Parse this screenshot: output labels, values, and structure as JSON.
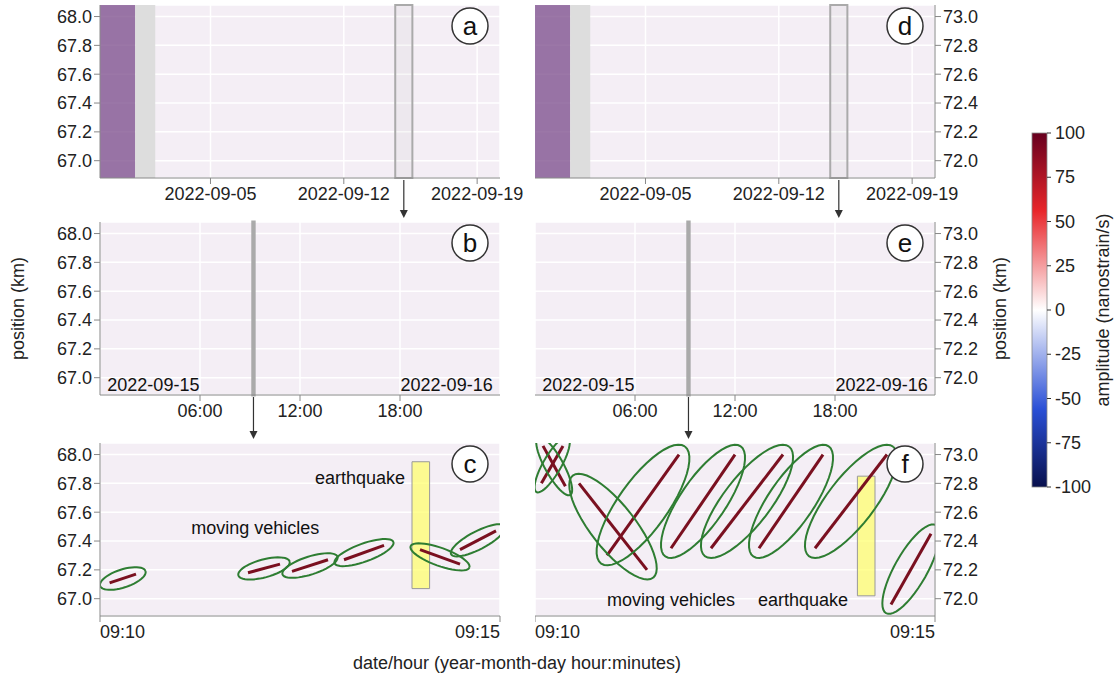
{
  "x_label": "date/hour (year-month-day hour:minutes)",
  "y_label": "position (km)",
  "colorbar": {
    "label": "amplitude (nanostrain/s)",
    "range": [
      -100,
      100
    ],
    "ticks": [
      -100,
      -75,
      -50,
      -25,
      0,
      25,
      50,
      75,
      100
    ]
  },
  "chart_data": [
    {
      "panel": "a",
      "type": "heatmap",
      "grid": true,
      "xlim": [
        -0.8,
        20.2
      ],
      "xticks": [
        {
          "value": 5,
          "label": "2022-09-05"
        },
        {
          "value": 12,
          "label": "2022-09-12"
        },
        {
          "value": 19,
          "label": "2022-09-19"
        }
      ],
      "ylim": [
        66.88,
        68.08
      ],
      "yticks": [
        {
          "value": 67,
          "label": "67.0"
        },
        67.2,
        67.4,
        67.6,
        67.8,
        {
          "value": 68,
          "label": "68.0"
        }
      ],
      "noisy": [
        -0.8,
        1.05
      ],
      "no_data": [
        1.05,
        2.1
      ],
      "highlight": [
        14.7,
        15.6
      ]
    },
    {
      "panel": "b",
      "type": "heatmap",
      "grid": true,
      "xlim": [
        0,
        24
      ],
      "xticks": [
        {
          "value": 6,
          "label": "06:00"
        },
        {
          "value": 12,
          "label": "12:00"
        },
        {
          "value": 18,
          "label": "18:00"
        }
      ],
      "ylim": [
        66.88,
        68.08
      ],
      "yticks": [
        {
          "value": 67,
          "label": "67.0"
        },
        67.2,
        67.4,
        67.6,
        67.8,
        {
          "value": 68,
          "label": "68.0"
        }
      ],
      "highlight": [
        9.1667,
        9.25
      ],
      "annotations": [
        {
          "text": "2022-09-15",
          "x": 0.2,
          "y": 66.95
        },
        {
          "text": "2022-09-16",
          "x": 23.8,
          "y": 66.95
        }
      ]
    },
    {
      "panel": "c",
      "type": "heatmap",
      "grid": true,
      "xlim": [
        10,
        15
      ],
      "xticks": [
        {
          "value": 10,
          "label": "09:10"
        },
        {
          "value": 15,
          "label": "09:15"
        }
      ],
      "ylim": [
        66.88,
        68.08
      ],
      "yticks": [
        {
          "value": 67,
          "label": "67.0"
        },
        67.2,
        67.4,
        67.6,
        67.8,
        {
          "value": 68,
          "label": "68.0"
        }
      ],
      "vehicles": [
        [
          [
            10.12,
            67.11
          ],
          [
            10.45,
            67.17
          ]
        ],
        [
          [
            11.85,
            67.18
          ],
          [
            12.25,
            67.24
          ]
        ],
        [
          [
            12.4,
            67.19
          ],
          [
            12.85,
            67.27
          ]
        ],
        [
          [
            13.05,
            67.27
          ],
          [
            13.55,
            67.37
          ]
        ],
        [
          [
            14.0,
            67.34
          ],
          [
            14.5,
            67.24
          ]
        ],
        [
          [
            14.5,
            67.34
          ],
          [
            14.95,
            67.47
          ]
        ]
      ],
      "earthquake": {
        "x": [
          13.9,
          14.12
        ],
        "y": [
          67.07,
          67.95
        ]
      },
      "annotations": [
        {
          "text": "moving vehicles",
          "x": 11.94,
          "y": 67.49
        },
        {
          "text": "earthquake",
          "x": 13.25,
          "y": 67.84
        }
      ]
    },
    {
      "panel": "d",
      "type": "heatmap",
      "grid": true,
      "xlim": [
        -0.8,
        20.2
      ],
      "xticks": [
        {
          "value": 5,
          "label": "2022-09-05"
        },
        {
          "value": 12,
          "label": "2022-09-12"
        },
        {
          "value": 19,
          "label": "2022-09-19"
        }
      ],
      "ylim": [
        71.88,
        73.08
      ],
      "yticks": [
        {
          "value": 72,
          "label": "72.0"
        },
        72.2,
        72.4,
        72.6,
        72.8,
        {
          "value": 73,
          "label": "73.0"
        }
      ],
      "noisy": [
        -0.8,
        1.05
      ],
      "no_data": [
        1.05,
        2.1
      ],
      "highlight": [
        14.7,
        15.6
      ]
    },
    {
      "panel": "e",
      "type": "heatmap",
      "grid": true,
      "xlim": [
        0,
        24
      ],
      "xticks": [
        {
          "value": 6,
          "label": "06:00"
        },
        {
          "value": 12,
          "label": "12:00"
        },
        {
          "value": 18,
          "label": "18:00"
        }
      ],
      "ylim": [
        71.88,
        73.08
      ],
      "yticks": [
        {
          "value": 72,
          "label": "72.0"
        },
        72.2,
        72.4,
        72.6,
        72.8,
        {
          "value": 73,
          "label": "73.0"
        }
      ],
      "highlight": [
        9.1667,
        9.25
      ],
      "annotations": [
        {
          "text": "2022-09-15",
          "x": 0.2,
          "y": 71.95
        },
        {
          "text": "2022-09-16",
          "x": 23.8,
          "y": 71.95
        }
      ]
    },
    {
      "panel": "f",
      "type": "heatmap",
      "grid": true,
      "xlim": [
        10,
        15
      ],
      "xticks": [
        {
          "value": 10,
          "label": "09:10"
        },
        {
          "value": 15,
          "label": "09:15"
        }
      ],
      "ylim": [
        71.88,
        73.08
      ],
      "yticks": [
        {
          "value": 72,
          "label": "72.0"
        },
        72.2,
        72.4,
        72.6,
        72.8,
        {
          "value": 73,
          "label": "73.0"
        }
      ],
      "vehicles": [
        [
          [
            10.08,
            72.8
          ],
          [
            10.35,
            73.06
          ]
        ],
        [
          [
            10.1,
            73.06
          ],
          [
            10.38,
            72.78
          ]
        ],
        [
          [
            10.55,
            72.8
          ],
          [
            11.4,
            72.2
          ]
        ],
        [
          [
            10.9,
            72.3
          ],
          [
            11.8,
            73.0
          ]
        ],
        [
          [
            11.7,
            72.35
          ],
          [
            12.5,
            73.0
          ]
        ],
        [
          [
            12.2,
            72.35
          ],
          [
            13.1,
            73.0
          ]
        ],
        [
          [
            12.8,
            72.35
          ],
          [
            13.6,
            73.0
          ]
        ],
        [
          [
            13.5,
            72.35
          ],
          [
            14.4,
            73.0
          ]
        ],
        [
          [
            14.45,
            71.96
          ],
          [
            14.95,
            72.45
          ]
        ]
      ],
      "earthquake": {
        "x": [
          14.03,
          14.25
        ],
        "y": [
          72.02,
          72.85
        ]
      },
      "annotations": [
        {
          "text": "moving vehicles",
          "x": 11.7,
          "y": 71.99
        },
        {
          "text": "earthquake",
          "x": 13.35,
          "y": 71.99
        }
      ]
    }
  ]
}
